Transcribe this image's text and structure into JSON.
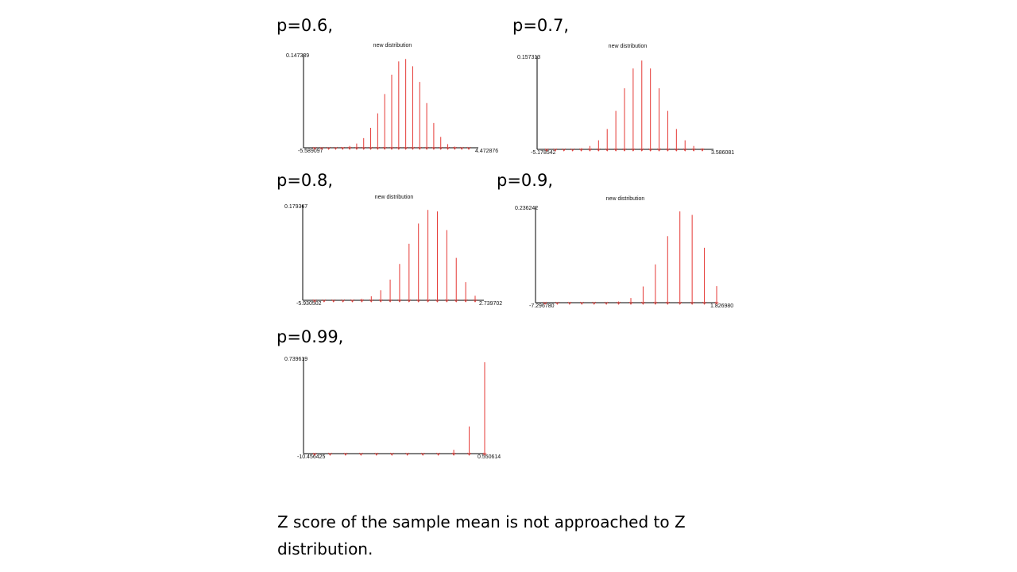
{
  "caption": "Z score of the sample mean is not approached to Z distribution.",
  "chart_data": [
    {
      "type": "bar",
      "panel_label": "p=0.6,",
      "title": "new distribution",
      "ylim_label": "0.147339",
      "xmin_label": "-5.589097",
      "xmax_label": "4.472876",
      "ylim": [
        0,
        0.147339
      ],
      "values": [
        0,
        0,
        0,
        0,
        0.001,
        0.003,
        0.007,
        0.016,
        0.033,
        0.057,
        0.089,
        0.121,
        0.143,
        0.147,
        0.135,
        0.109,
        0.074,
        0.041,
        0.018,
        0.006,
        0.002,
        0.0005,
        0
      ]
    },
    {
      "type": "bar",
      "panel_label": "p=0.7,",
      "title": "new distribution",
      "ylim_label": "0.157313",
      "xmin_label": "-5.178542",
      "xmax_label": "3.586081",
      "ylim": [
        0,
        0.157313
      ],
      "values": [
        0,
        0,
        0,
        0,
        0.002,
        0.006,
        0.016,
        0.036,
        0.068,
        0.108,
        0.143,
        0.157,
        0.143,
        0.108,
        0.068,
        0.036,
        0.016,
        0.006,
        0.002
      ]
    },
    {
      "type": "bar",
      "panel_label": "p=0.8,",
      "title": "new distribution",
      "ylim_label": "0.179367",
      "xmin_label": "-5.930502",
      "xmax_label": "2.739702",
      "ylim": [
        0,
        0.179367
      ],
      "values": [
        0,
        0,
        0,
        0,
        0.001,
        0.003,
        0.008,
        0.02,
        0.041,
        0.072,
        0.112,
        0.152,
        0.179,
        0.176,
        0.139,
        0.084,
        0.036,
        0.009
      ]
    },
    {
      "type": "bar",
      "panel_label": "p=0.9,",
      "title": "new distribution",
      "ylim_label": "0.236242",
      "xmin_label": "-7.296780",
      "xmax_label": "1.826980",
      "ylim": [
        0,
        0.236242
      ],
      "values": [
        0,
        0,
        0,
        0,
        0,
        0,
        0.003,
        0.012,
        0.042,
        0.099,
        0.172,
        0.236,
        0.227,
        0.142,
        0.043
      ]
    },
    {
      "type": "bar",
      "panel_label": "p=0.99,",
      "title": "",
      "ylim_label": "0.739619",
      "xmin_label": "-10.456425",
      "xmax_label": "0.550614",
      "ylim": [
        0,
        0.739619
      ],
      "values": [
        0,
        0,
        0,
        0,
        0,
        0,
        0,
        0,
        0,
        0.031,
        0.22,
        0.739619
      ]
    }
  ]
}
